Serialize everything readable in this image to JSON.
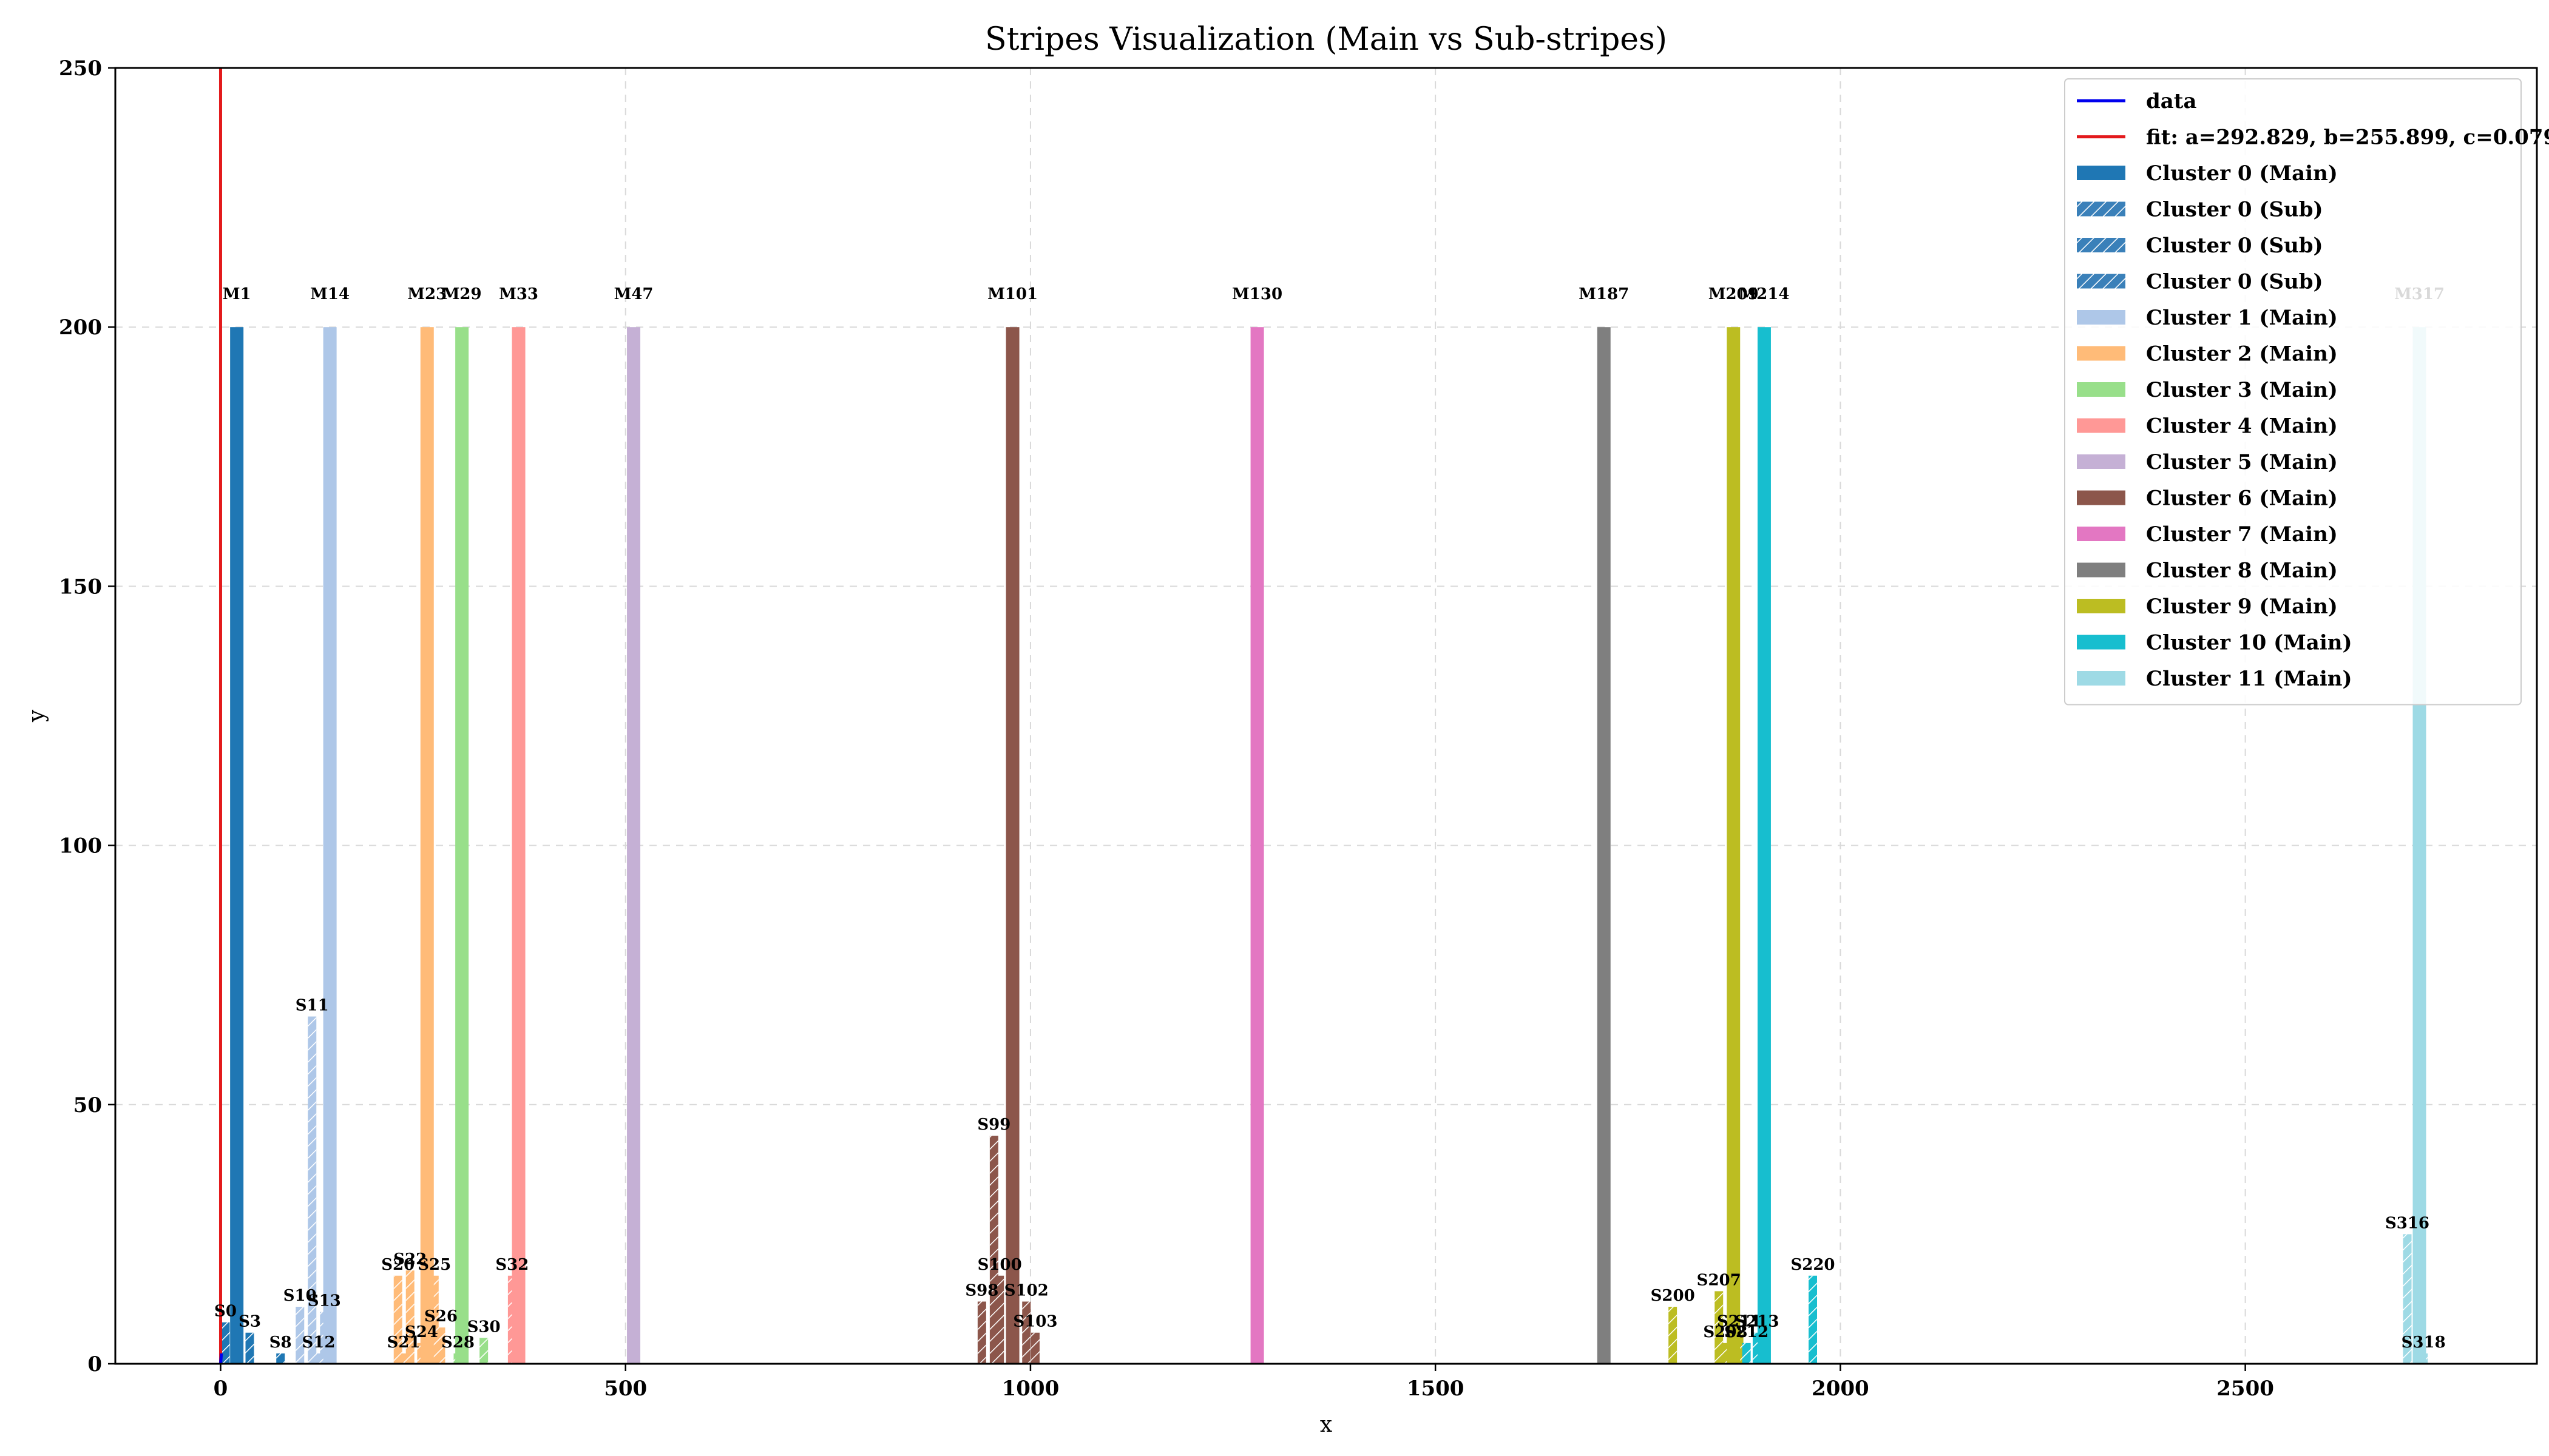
{
  "chart_data": {
    "type": "bar",
    "title": "Stripes Visualization (Main vs Sub-stripes)",
    "xlabel": "x",
    "ylabel": "y",
    "xlim": [
      -130,
      2860
    ],
    "ylim": [
      0,
      250
    ],
    "xticks": [
      0,
      500,
      1000,
      1500,
      2000,
      2500
    ],
    "yticks": [
      0,
      50,
      100,
      150,
      200,
      250
    ],
    "grid": true,
    "legend_position": "top-right",
    "colors": [
      "#1f77b4",
      "#aec7e8",
      "#ffbb78",
      "#98df8a",
      "#ff9896",
      "#c5b0d5",
      "#8c564b",
      "#e377c2",
      "#7f7f7f",
      "#bcbd22",
      "#17becf",
      "#9edae5"
    ],
    "sub_color": "#3a80b9",
    "fit_color": "#e31a1c",
    "data_color": "#0000ee",
    "legend": [
      {
        "label": "data",
        "kind": "line",
        "color": "#0000ee"
      },
      {
        "label": "fit: a=292.829, b=255.899, c=0.079",
        "kind": "line",
        "color": "#e31a1c"
      },
      {
        "label": "Cluster 0 (Main)",
        "kind": "main",
        "color": "#1f77b4"
      },
      {
        "label": "Cluster 0 (Sub)",
        "kind": "sub",
        "color": "#3a80b9"
      },
      {
        "label": "Cluster 0 (Sub)",
        "kind": "sub",
        "color": "#3a80b9"
      },
      {
        "label": "Cluster 0 (Sub)",
        "kind": "sub",
        "color": "#3a80b9"
      },
      {
        "label": "Cluster 1 (Main)",
        "kind": "main",
        "color": "#aec7e8"
      },
      {
        "label": "Cluster 2 (Main)",
        "kind": "main",
        "color": "#ffbb78"
      },
      {
        "label": "Cluster 3 (Main)",
        "kind": "main",
        "color": "#98df8a"
      },
      {
        "label": "Cluster 4 (Main)",
        "kind": "main",
        "color": "#ff9896"
      },
      {
        "label": "Cluster 5 (Main)",
        "kind": "main",
        "color": "#c5b0d5"
      },
      {
        "label": "Cluster 6 (Main)",
        "kind": "main",
        "color": "#8c564b"
      },
      {
        "label": "Cluster 7 (Main)",
        "kind": "main",
        "color": "#e377c2"
      },
      {
        "label": "Cluster 8 (Main)",
        "kind": "main",
        "color": "#7f7f7f"
      },
      {
        "label": "Cluster 9 (Main)",
        "kind": "main",
        "color": "#bcbd22"
      },
      {
        "label": "Cluster 10 (Main)",
        "kind": "main",
        "color": "#17becf"
      },
      {
        "label": "Cluster 11 (Main)",
        "kind": "main",
        "color": "#9edae5"
      }
    ],
    "main_stripes": [
      {
        "label": "M1",
        "x": 20,
        "y": 200,
        "cluster": 0
      },
      {
        "label": "M14",
        "x": 135,
        "y": 200,
        "cluster": 1
      },
      {
        "label": "M23",
        "x": 255,
        "y": 200,
        "cluster": 2
      },
      {
        "label": "M29",
        "x": 298,
        "y": 200,
        "cluster": 3
      },
      {
        "label": "M33",
        "x": 368,
        "y": 200,
        "cluster": 4
      },
      {
        "label": "M47",
        "x": 510,
        "y": 200,
        "cluster": 5
      },
      {
        "label": "M101",
        "x": 978,
        "y": 200,
        "cluster": 6
      },
      {
        "label": "M130",
        "x": 1280,
        "y": 200,
        "cluster": 7
      },
      {
        "label": "M187",
        "x": 1708,
        "y": 200,
        "cluster": 8
      },
      {
        "label": "M209",
        "x": 1868,
        "y": 200,
        "cluster": 9
      },
      {
        "label": "M214",
        "x": 1906,
        "y": 200,
        "cluster": 10
      },
      {
        "label": "M317",
        "x": 2715,
        "y": 200,
        "cluster": 11
      }
    ],
    "sub_stripes": [
      {
        "label": "S0",
        "x": 6,
        "y": 8,
        "cluster": 0
      },
      {
        "label": "S3",
        "x": 36,
        "y": 6,
        "cluster": 0
      },
      {
        "label": "S8",
        "x": 74,
        "y": 2,
        "cluster": 0
      },
      {
        "label": "S10",
        "x": 98,
        "y": 11,
        "cluster": 1
      },
      {
        "label": "S11",
        "x": 113,
        "y": 67,
        "cluster": 1
      },
      {
        "label": "S12",
        "x": 121,
        "y": 2,
        "cluster": 1
      },
      {
        "label": "S13",
        "x": 128,
        "y": 10,
        "cluster": 1
      },
      {
        "label": "S20",
        "x": 219,
        "y": 17,
        "cluster": 2
      },
      {
        "label": "S21",
        "x": 226,
        "y": 2,
        "cluster": 2
      },
      {
        "label": "S22",
        "x": 234,
        "y": 18,
        "cluster": 2
      },
      {
        "label": "S24",
        "x": 248,
        "y": 4,
        "cluster": 2
      },
      {
        "label": "S25",
        "x": 264,
        "y": 17,
        "cluster": 2
      },
      {
        "label": "S26",
        "x": 272,
        "y": 7,
        "cluster": 2
      },
      {
        "label": "S28",
        "x": 293,
        "y": 2,
        "cluster": 3
      },
      {
        "label": "S30",
        "x": 325,
        "y": 5,
        "cluster": 3
      },
      {
        "label": "S32",
        "x": 360,
        "y": 17,
        "cluster": 4
      },
      {
        "label": "S98",
        "x": 940,
        "y": 12,
        "cluster": 6
      },
      {
        "label": "S99",
        "x": 955,
        "y": 44,
        "cluster": 6
      },
      {
        "label": "S100",
        "x": 962,
        "y": 17,
        "cluster": 6
      },
      {
        "label": "S102",
        "x": 995,
        "y": 12,
        "cluster": 6
      },
      {
        "label": "S103",
        "x": 1006,
        "y": 6,
        "cluster": 6
      },
      {
        "label": "S200",
        "x": 1793,
        "y": 11,
        "cluster": 9
      },
      {
        "label": "S207",
        "x": 1850,
        "y": 14,
        "cluster": 9
      },
      {
        "label": "S208",
        "x": 1858,
        "y": 4,
        "cluster": 9
      },
      {
        "label": "S211",
        "x": 1875,
        "y": 6,
        "cluster": 9
      },
      {
        "label": "S212",
        "x": 1884,
        "y": 4,
        "cluster": 10
      },
      {
        "label": "S213",
        "x": 1897,
        "y": 6,
        "cluster": 10
      },
      {
        "label": "S220",
        "x": 1966,
        "y": 17,
        "cluster": 10
      },
      {
        "label": "S316",
        "x": 2700,
        "y": 25,
        "cluster": 11
      },
      {
        "label": "S318",
        "x": 2720,
        "y": 2,
        "cluster": 11
      }
    ],
    "fit_line": {
      "x": 0,
      "y": [
        0,
        250
      ]
    },
    "data_points": [
      {
        "x": 0,
        "y": 0
      },
      {
        "x": 1,
        "y": 2
      }
    ]
  }
}
